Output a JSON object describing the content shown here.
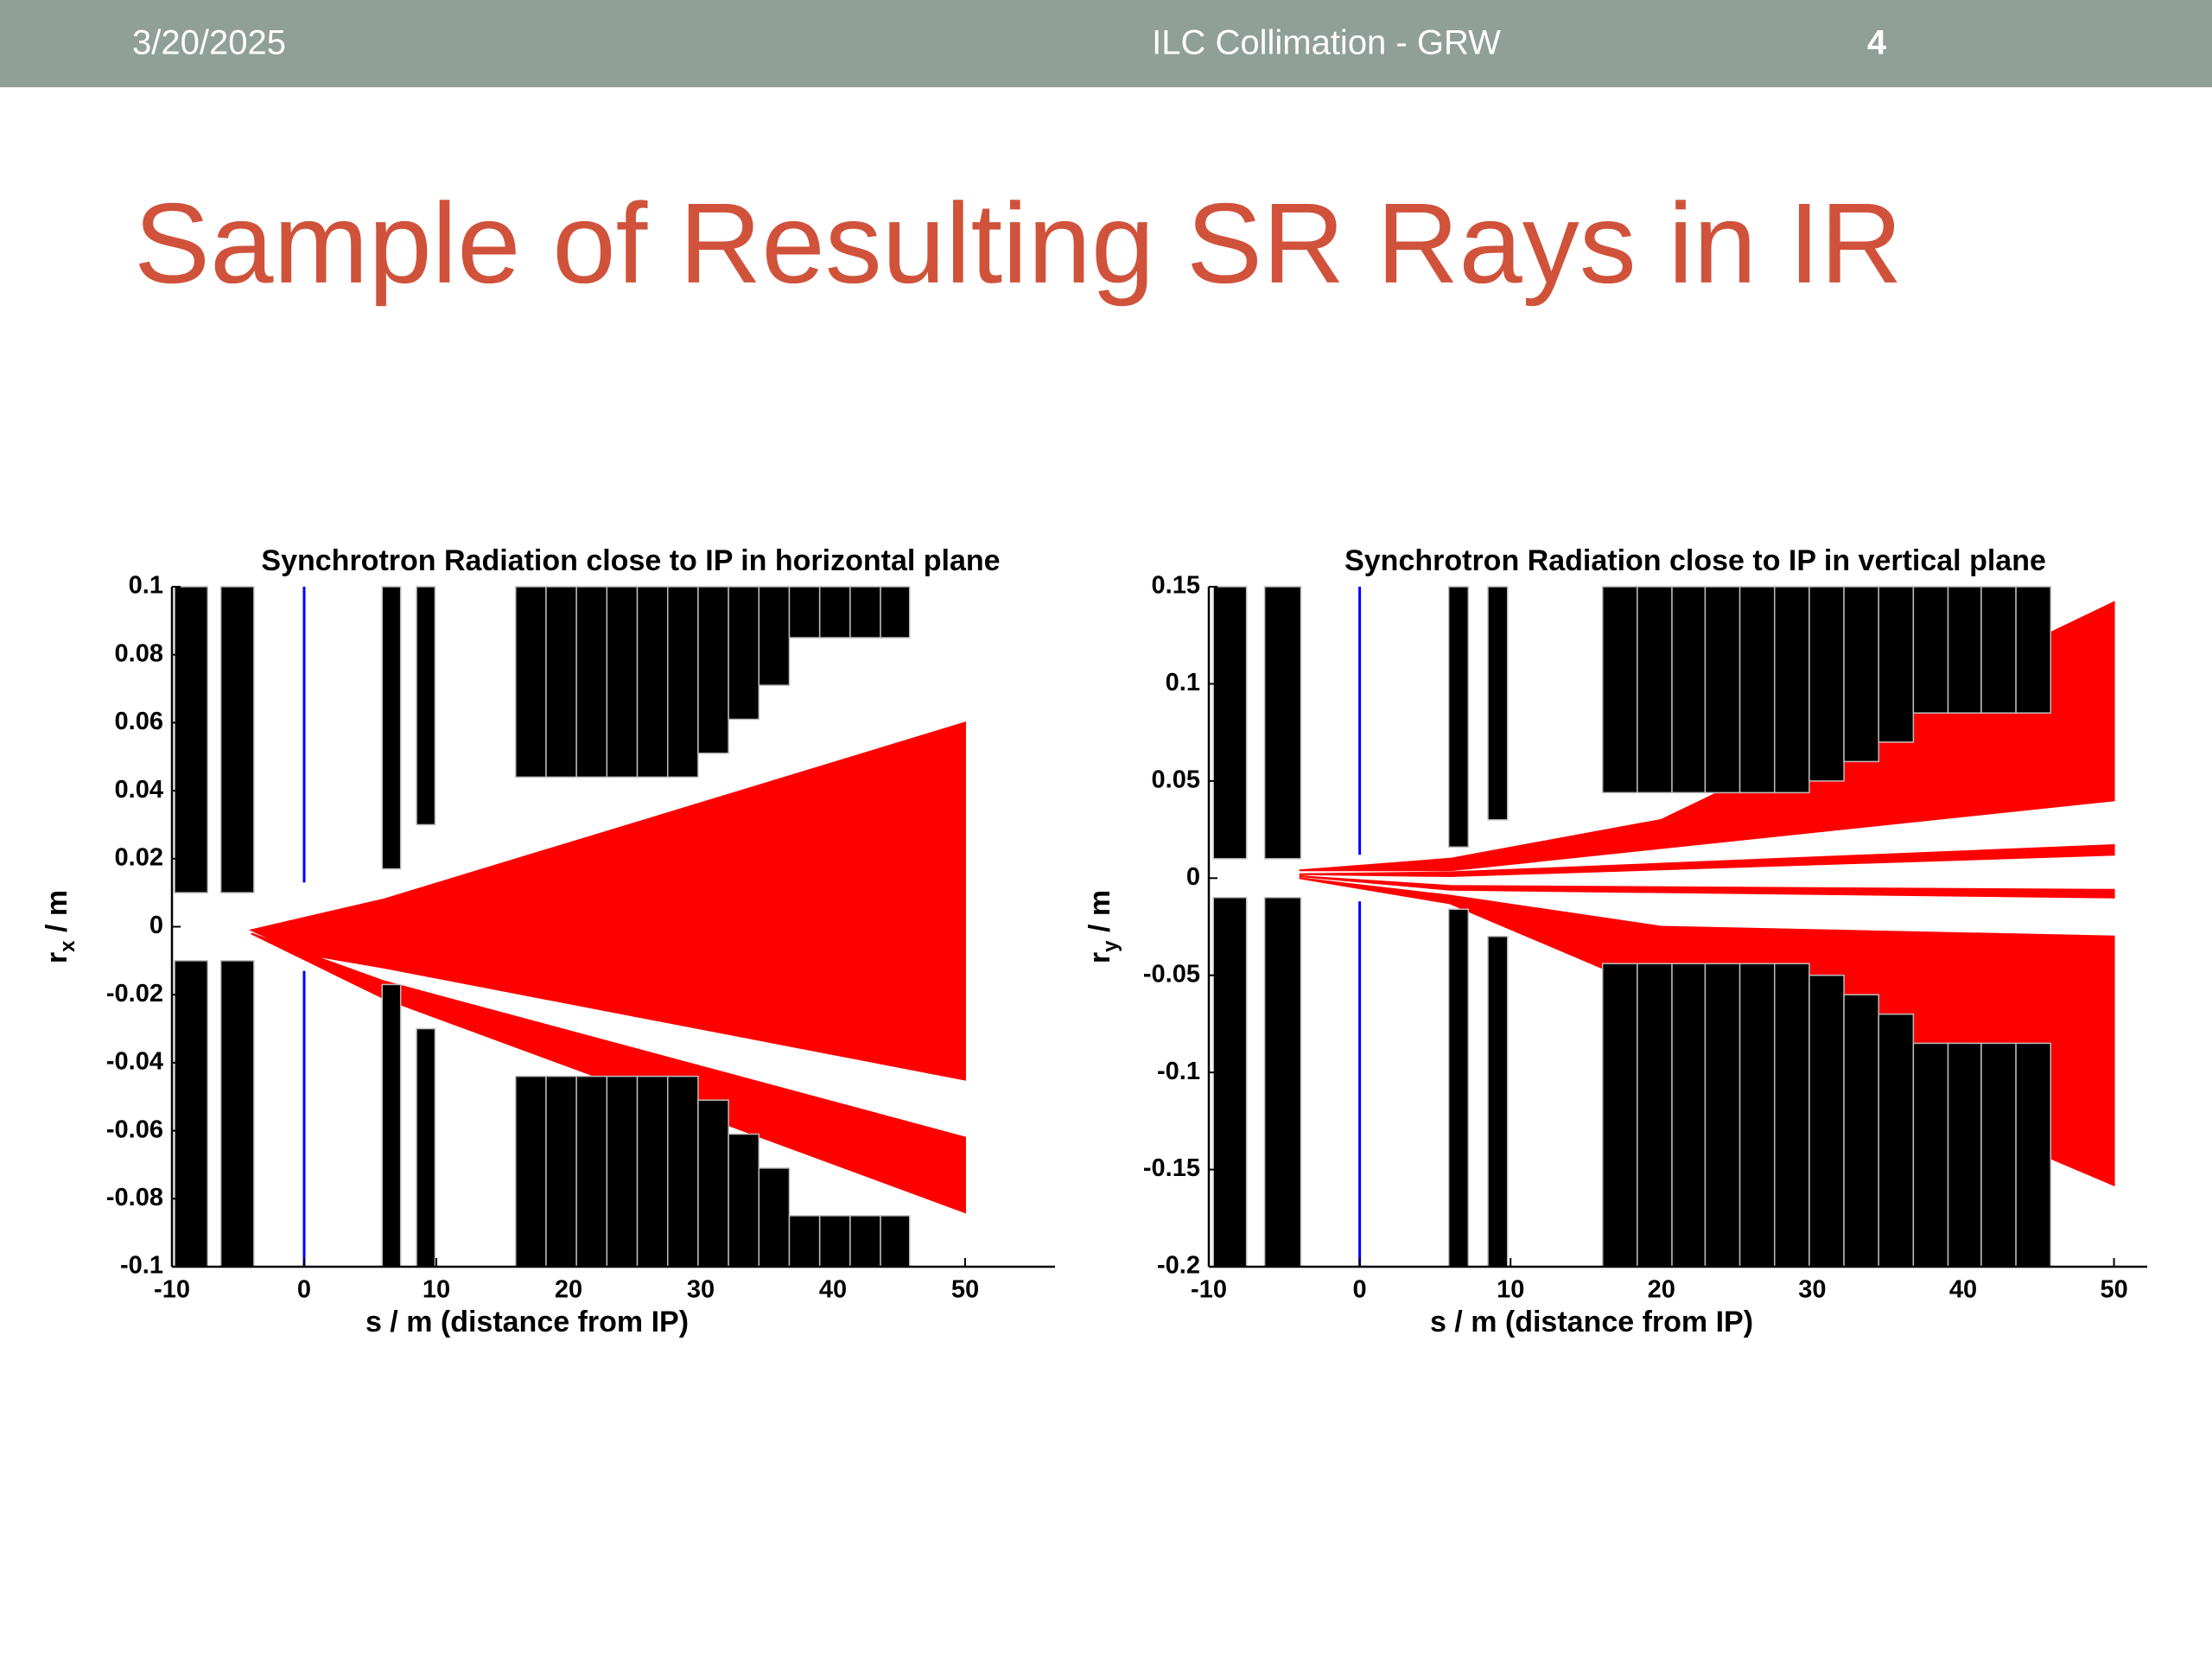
{
  "header": {
    "date": "3/20/2025",
    "footer": "ILC Collimation - GRW",
    "page": "4"
  },
  "title": "Sample of Resulting SR Rays in IR",
  "chart_data": [
    {
      "type": "beamline",
      "title": "Synchrotron Radiation close to IP in horizontal plane",
      "xlabel": "s / m (distance from IP)",
      "ylabel": {
        "main": "r",
        "sub": "x",
        "unit": " / m"
      },
      "xlim": [
        -10,
        56.8
      ],
      "xticks": [
        -10,
        0,
        10,
        20,
        30,
        40,
        50
      ],
      "ylim": [
        -0.1,
        0.1
      ],
      "yticks": [
        0.1,
        0.08,
        0.06,
        0.04,
        0.02,
        0,
        -0.02,
        -0.04,
        -0.06,
        -0.08,
        -0.1
      ],
      "aperture_color": "#000000",
      "ray_color": "#ff0000",
      "ip_color": "#0000ff",
      "ip": {
        "s": 0,
        "r": 0.013
      },
      "apertures": [
        {
          "s": [
            -9.8,
            -7.3
          ],
          "r": 0.01
        },
        {
          "s": [
            -6.3,
            -3.8
          ],
          "r": 0.01
        },
        {
          "s": [
            5.9,
            7.3
          ],
          "r": 0.017
        },
        {
          "s": [
            8.5,
            9.9
          ],
          "r": 0.03
        },
        {
          "s": [
            16.0,
            18.3
          ],
          "r": 0.044
        },
        {
          "s": [
            18.3,
            20.6
          ],
          "r": 0.044
        },
        {
          "s": [
            20.6,
            22.9
          ],
          "r": 0.044
        },
        {
          "s": [
            22.9,
            25.2
          ],
          "r": 0.044
        },
        {
          "s": [
            25.2,
            27.5
          ],
          "r": 0.044
        },
        {
          "s": [
            27.5,
            29.8
          ],
          "r": 0.044
        },
        {
          "s": [
            29.8,
            32.1
          ],
          "r": 0.051
        },
        {
          "s": [
            32.1,
            34.4
          ],
          "r": 0.061
        },
        {
          "s": [
            34.4,
            36.7
          ],
          "r": 0.071
        },
        {
          "s": [
            36.7,
            39.0
          ],
          "r": 0.085
        },
        {
          "s": [
            39.0,
            41.3
          ],
          "r": 0.085
        },
        {
          "s": [
            41.3,
            43.6
          ],
          "r": 0.085
        },
        {
          "s": [
            43.6,
            45.8
          ],
          "r": 0.085
        }
      ],
      "rays": [
        {
          "s": [
            -4,
            6,
            50,
            50,
            6,
            0
          ],
          "r": [
            -0.001,
            0.008,
            0.06,
            -0.045,
            -0.012,
            -0.008
          ]
        },
        {
          "s": [
            -4,
            6,
            50,
            50,
            6
          ],
          "r": [
            -0.002,
            -0.016,
            -0.062,
            -0.084,
            -0.021
          ]
        }
      ]
    },
    {
      "type": "beamline",
      "title": "Synchrotron Radiation close to IP in vertical plane",
      "xlabel": "s / m (distance from IP)",
      "ylabel": {
        "main": "r",
        "sub": "y",
        "unit": " / m"
      },
      "xlim": [
        -10,
        52.2
      ],
      "xticks": [
        -10,
        0,
        10,
        20,
        30,
        40,
        50
      ],
      "ylim": [
        -0.2,
        0.15
      ],
      "yticks": [
        0.15,
        0.1,
        0.05,
        0,
        -0.05,
        -0.1,
        -0.15,
        -0.2
      ],
      "aperture_color": "#000000",
      "ray_color": "#ff0000",
      "ip_color": "#0000ff",
      "ip": {
        "s": 0,
        "r": 0.012
      },
      "apertures": [
        {
          "s": [
            -9.7,
            -7.5
          ],
          "r": 0.01
        },
        {
          "s": [
            -6.3,
            -3.9
          ],
          "r": 0.01
        },
        {
          "s": [
            5.9,
            7.2
          ],
          "r": 0.016
        },
        {
          "s": [
            8.5,
            9.8
          ],
          "r": 0.03
        },
        {
          "s": [
            16.1,
            18.4
          ],
          "r": 0.044
        },
        {
          "s": [
            18.4,
            20.7
          ],
          "r": 0.044
        },
        {
          "s": [
            20.7,
            22.9
          ],
          "r": 0.044
        },
        {
          "s": [
            22.9,
            25.2
          ],
          "r": 0.044
        },
        {
          "s": [
            25.2,
            27.5
          ],
          "r": 0.044
        },
        {
          "s": [
            27.5,
            29.8
          ],
          "r": 0.044
        },
        {
          "s": [
            29.8,
            32.1
          ],
          "r": 0.05
        },
        {
          "s": [
            32.1,
            34.4
          ],
          "r": 0.06
        },
        {
          "s": [
            34.4,
            36.7
          ],
          "r": 0.07
        },
        {
          "s": [
            36.7,
            39.0
          ],
          "r": 0.085
        },
        {
          "s": [
            39.0,
            41.2
          ],
          "r": 0.085
        },
        {
          "s": [
            41.2,
            43.5
          ],
          "r": 0.085
        },
        {
          "s": [
            43.5,
            45.8
          ],
          "r": 0.085
        }
      ],
      "rays": [
        {
          "s": [
            -4,
            6,
            20,
            50,
            50,
            6
          ],
          "r": [
            0.004,
            0.01,
            0.03,
            0.142,
            0.04,
            0.004
          ]
        },
        {
          "s": [
            -4,
            6,
            50,
            50,
            6
          ],
          "r": [
            0.002,
            0.003,
            0.017,
            0.012,
            0.001
          ]
        },
        {
          "s": [
            -4,
            6,
            50,
            50,
            6
          ],
          "r": [
            0.001,
            -0.004,
            -0.006,
            -0.01,
            -0.006
          ]
        },
        {
          "s": [
            -4,
            6,
            20,
            50,
            50,
            6
          ],
          "r": [
            0.0,
            -0.009,
            -0.025,
            -0.03,
            -0.158,
            -0.013
          ]
        }
      ]
    }
  ]
}
